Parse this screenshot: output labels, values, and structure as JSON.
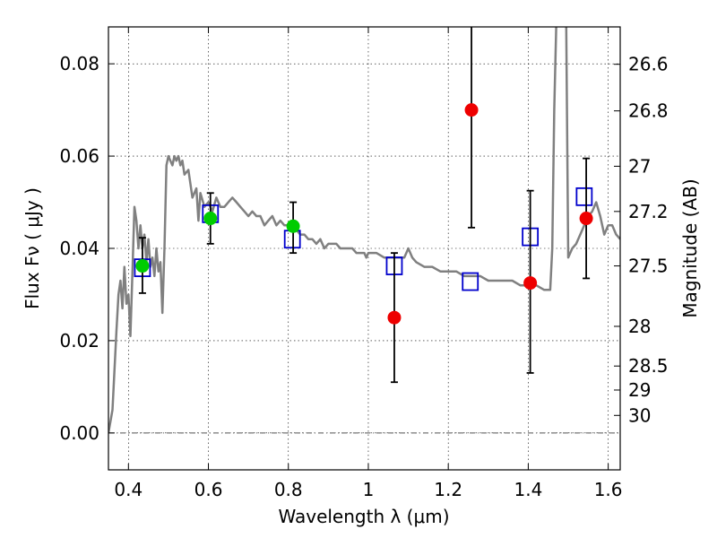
{
  "chart_data": {
    "type": "scatter",
    "xlabel": "Wavelength  λ (μm)",
    "ylabel_left": "Flux  Fν  ( μJy )",
    "ylabel_right": "Magnitude (AB)",
    "xlim": [
      0.35,
      1.63
    ],
    "ylim": [
      -0.008,
      0.088
    ],
    "grid": true,
    "x_ticks": [
      0.4,
      0.6,
      0.8,
      1.0,
      1.2,
      1.4,
      1.6
    ],
    "x_tick_labels": [
      "0.4",
      "0.6",
      "0.8",
      "1",
      "1.2",
      "1.4",
      "1.6"
    ],
    "y_ticks": [
      0.0,
      0.02,
      0.04,
      0.06,
      0.08
    ],
    "y_tick_labels": [
      "0.00",
      "0.02",
      "0.04",
      "0.06",
      "0.08"
    ],
    "right_ticks": [
      {
        "label": "26.6",
        "flux": 0.0799
      },
      {
        "label": "26.8",
        "flux": 0.0698
      },
      {
        "label": "27",
        "flux": 0.0578
      },
      {
        "label": "27.2",
        "flux": 0.048
      },
      {
        "label": "27.5",
        "flux": 0.0362
      },
      {
        "label": "28",
        "flux": 0.0231
      },
      {
        "label": "28.5",
        "flux": 0.0145
      },
      {
        "label": "29",
        "flux": 0.0093
      },
      {
        "label": "30",
        "flux": 0.0038
      }
    ],
    "series": [
      {
        "kind": "spectrum",
        "color": "#808080",
        "x": [
          0.35,
          0.36,
          0.37,
          0.375,
          0.38,
          0.385,
          0.39,
          0.395,
          0.4,
          0.405,
          0.41,
          0.415,
          0.42,
          0.425,
          0.43,
          0.435,
          0.44,
          0.445,
          0.45,
          0.455,
          0.46,
          0.465,
          0.47,
          0.475,
          0.48,
          0.485,
          0.49,
          0.495,
          0.5,
          0.505,
          0.51,
          0.515,
          0.52,
          0.525,
          0.53,
          0.535,
          0.54,
          0.55,
          0.56,
          0.57,
          0.575,
          0.58,
          0.59,
          0.6,
          0.61,
          0.62,
          0.63,
          0.64,
          0.65,
          0.66,
          0.67,
          0.68,
          0.69,
          0.7,
          0.71,
          0.72,
          0.73,
          0.74,
          0.75,
          0.76,
          0.77,
          0.78,
          0.79,
          0.8,
          0.81,
          0.82,
          0.83,
          0.84,
          0.85,
          0.86,
          0.87,
          0.88,
          0.89,
          0.9,
          0.91,
          0.92,
          0.93,
          0.94,
          0.95,
          0.96,
          0.97,
          0.98,
          0.99,
          0.995,
          1.0,
          1.02,
          1.04,
          1.06,
          1.08,
          1.09,
          1.1,
          1.11,
          1.12,
          1.14,
          1.16,
          1.18,
          1.2,
          1.22,
          1.24,
          1.26,
          1.28,
          1.3,
          1.32,
          1.34,
          1.36,
          1.38,
          1.4,
          1.42,
          1.44,
          1.45,
          1.455,
          1.46,
          1.465,
          1.47,
          1.48,
          1.49,
          1.495,
          1.5,
          1.51,
          1.52,
          1.53,
          1.54,
          1.55,
          1.56,
          1.57,
          1.58,
          1.59,
          1.6,
          1.61,
          1.62,
          1.63
        ],
        "y": [
          0.0,
          0.005,
          0.022,
          0.03,
          0.033,
          0.027,
          0.036,
          0.028,
          0.03,
          0.021,
          0.035,
          0.049,
          0.046,
          0.04,
          0.045,
          0.04,
          0.043,
          0.037,
          0.042,
          0.036,
          0.038,
          0.034,
          0.04,
          0.035,
          0.037,
          0.026,
          0.04,
          0.058,
          0.06,
          0.059,
          0.058,
          0.06,
          0.059,
          0.06,
          0.058,
          0.059,
          0.056,
          0.057,
          0.051,
          0.053,
          0.046,
          0.052,
          0.049,
          0.05,
          0.048,
          0.051,
          0.049,
          0.049,
          0.05,
          0.051,
          0.05,
          0.049,
          0.048,
          0.047,
          0.048,
          0.047,
          0.047,
          0.045,
          0.046,
          0.047,
          0.045,
          0.046,
          0.045,
          0.045,
          0.044,
          0.044,
          0.043,
          0.043,
          0.042,
          0.042,
          0.041,
          0.042,
          0.04,
          0.041,
          0.041,
          0.041,
          0.04,
          0.04,
          0.04,
          0.04,
          0.039,
          0.039,
          0.039,
          0.038,
          0.039,
          0.039,
          0.038,
          0.038,
          0.038,
          0.038,
          0.04,
          0.038,
          0.037,
          0.036,
          0.036,
          0.035,
          0.035,
          0.035,
          0.034,
          0.034,
          0.034,
          0.033,
          0.033,
          0.033,
          0.033,
          0.032,
          0.032,
          0.032,
          0.031,
          0.031,
          0.031,
          0.04,
          0.07,
          0.088,
          0.09,
          0.09,
          0.088,
          0.038,
          0.04,
          0.041,
          0.043,
          0.045,
          0.047,
          0.048,
          0.05,
          0.047,
          0.043,
          0.045,
          0.045,
          0.043,
          0.042
        ]
      },
      {
        "kind": "model_points",
        "marker": "open-square",
        "color": "#0000cc",
        "x": [
          0.435,
          0.605,
          0.81,
          1.065,
          1.255,
          1.405,
          1.54
        ],
        "y": [
          0.0358,
          0.0475,
          0.042,
          0.0362,
          0.0328,
          0.0425,
          0.0512
        ]
      },
      {
        "kind": "observed_optical",
        "marker": "filled-circle",
        "color": "#00cc00",
        "x": [
          0.435,
          0.605,
          0.812
        ],
        "y": [
          0.0362,
          0.0465,
          0.0448
        ],
        "yerr_low": [
          0.0303,
          0.041,
          0.039
        ],
        "yerr_high": [
          0.0423,
          0.052,
          0.05
        ]
      },
      {
        "kind": "observed_nir",
        "marker": "filled-circle",
        "color": "#ee0000",
        "x": [
          1.065,
          1.258,
          1.405,
          1.545
        ],
        "y": [
          0.025,
          0.07,
          0.0325,
          0.0465
        ],
        "yerr_low": [
          0.011,
          0.0445,
          0.013,
          0.0335
        ],
        "yerr_high": [
          0.039,
          0.0885,
          0.0525,
          0.0595
        ]
      }
    ]
  }
}
